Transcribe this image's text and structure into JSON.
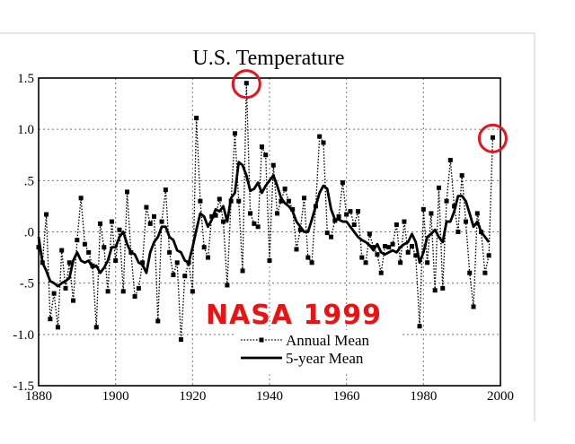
{
  "chart_data": {
    "type": "line",
    "title": "U.S. Temperature",
    "xlabel": "",
    "ylabel": "",
    "xlim": [
      1880,
      2000
    ],
    "ylim": [
      -1.5,
      1.5
    ],
    "x_ticks": [
      1880,
      1900,
      1920,
      1940,
      1960,
      1980,
      2000
    ],
    "y_ticks": [
      {
        "value": 1.5,
        "label": "1.5"
      },
      {
        "value": 1.0,
        "label": "1.0"
      },
      {
        "value": 0.5,
        "label": ".5"
      },
      {
        "value": 0.0,
        "label": ".0"
      },
      {
        "value": -0.5,
        "label": "-.5"
      },
      {
        "value": -1.0,
        "label": "-1.0"
      },
      {
        "value": -1.5,
        "label": "-1.5"
      }
    ],
    "grid": true,
    "legend_position": "bottom-right",
    "series": [
      {
        "name": "Annual Mean",
        "style": "dotted-with-square-markers",
        "x": [
          1880,
          1881,
          1882,
          1883,
          1884,
          1885,
          1886,
          1887,
          1888,
          1889,
          1890,
          1891,
          1892,
          1893,
          1894,
          1895,
          1896,
          1897,
          1898,
          1899,
          1900,
          1901,
          1902,
          1903,
          1904,
          1905,
          1906,
          1907,
          1908,
          1909,
          1910,
          1911,
          1912,
          1913,
          1914,
          1915,
          1916,
          1917,
          1918,
          1919,
          1920,
          1921,
          1922,
          1923,
          1924,
          1925,
          1926,
          1927,
          1928,
          1929,
          1930,
          1931,
          1932,
          1933,
          1934,
          1935,
          1936,
          1937,
          1938,
          1939,
          1940,
          1941,
          1942,
          1943,
          1944,
          1945,
          1946,
          1947,
          1948,
          1949,
          1950,
          1951,
          1952,
          1953,
          1954,
          1955,
          1956,
          1957,
          1958,
          1959,
          1960,
          1961,
          1962,
          1963,
          1964,
          1965,
          1966,
          1967,
          1968,
          1969,
          1970,
          1971,
          1972,
          1973,
          1974,
          1975,
          1976,
          1977,
          1978,
          1979,
          1980,
          1981,
          1982,
          1983,
          1984,
          1985,
          1986,
          1987,
          1988,
          1989,
          1990,
          1991,
          1992,
          1993,
          1994,
          1995,
          1996,
          1997,
          1998
        ],
        "values": [
          -0.15,
          -0.3,
          0.17,
          -0.85,
          -0.6,
          -0.93,
          -0.18,
          -0.55,
          -0.3,
          -0.67,
          -0.08,
          0.33,
          -0.12,
          -0.2,
          -0.33,
          -0.93,
          0.08,
          -0.15,
          -0.58,
          0.1,
          -0.28,
          0.02,
          -0.58,
          0.39,
          -0.2,
          -0.63,
          -0.55,
          -0.3,
          0.24,
          0.08,
          0.15,
          -0.87,
          0.1,
          0.41,
          -0.2,
          -0.42,
          -0.3,
          -1.05,
          -0.43,
          -0.3,
          -0.58,
          1.11,
          0.3,
          -0.15,
          -0.25,
          0.15,
          0.16,
          0.32,
          0.1,
          -0.52,
          0.3,
          0.96,
          0.3,
          -0.38,
          1.45,
          0.18,
          0.08,
          0.05,
          0.83,
          0.75,
          -0.28,
          0.65,
          0.18,
          0.3,
          0.42,
          0.3,
          0.22,
          -0.17,
          0.02,
          0.33,
          -0.25,
          -0.3,
          0.25,
          0.93,
          0.87,
          -0.01,
          -0.05,
          0.11,
          0.15,
          0.48,
          0.17,
          0.2,
          0.07,
          0.2,
          -0.25,
          -0.3,
          -0.02,
          -0.15,
          -0.22,
          -0.4,
          -0.14,
          -0.15,
          -0.12,
          0.07,
          -0.3,
          0.1,
          -0.2,
          -0.14,
          -0.23,
          -0.92,
          0.22,
          -0.3,
          0.18,
          -0.57,
          0.43,
          -0.55,
          0.3,
          0.7,
          0.25,
          0.0,
          0.55,
          0.1,
          -0.4,
          -0.73,
          0.18,
          0.0,
          -0.4,
          -0.23,
          0.92
        ]
      },
      {
        "name": "5-year Mean",
        "style": "thick-solid",
        "x": [
          1880,
          1881,
          1882,
          1883,
          1884,
          1885,
          1886,
          1887,
          1888,
          1889,
          1890,
          1891,
          1892,
          1893,
          1894,
          1895,
          1896,
          1897,
          1898,
          1899,
          1900,
          1901,
          1902,
          1903,
          1904,
          1905,
          1906,
          1907,
          1908,
          1909,
          1910,
          1911,
          1912,
          1913,
          1914,
          1915,
          1916,
          1917,
          1918,
          1919,
          1920,
          1921,
          1922,
          1923,
          1924,
          1925,
          1926,
          1927,
          1928,
          1929,
          1930,
          1931,
          1932,
          1933,
          1934,
          1935,
          1936,
          1937,
          1938,
          1939,
          1940,
          1941,
          1942,
          1943,
          1944,
          1945,
          1946,
          1947,
          1948,
          1949,
          1950,
          1951,
          1952,
          1953,
          1954,
          1955,
          1956,
          1957,
          1958,
          1959,
          1960,
          1961,
          1962,
          1963,
          1964,
          1965,
          1966,
          1967,
          1968,
          1969,
          1970,
          1971,
          1972,
          1973,
          1974,
          1975,
          1976,
          1977,
          1978,
          1979,
          1980,
          1981,
          1982,
          1983,
          1984,
          1985,
          1986,
          1987,
          1988,
          1989,
          1990,
          1991,
          1992,
          1993,
          1994,
          1995,
          1996,
          1997
        ],
        "values": [
          -0.05,
          -0.3,
          -0.38,
          -0.48,
          -0.5,
          -0.53,
          -0.5,
          -0.48,
          -0.45,
          -0.28,
          -0.2,
          -0.28,
          -0.3,
          -0.28,
          -0.35,
          -0.33,
          -0.4,
          -0.35,
          -0.28,
          -0.15,
          -0.15,
          -0.05,
          0.0,
          -0.12,
          -0.2,
          -0.22,
          -0.3,
          -0.32,
          -0.4,
          -0.2,
          -0.1,
          -0.05,
          0.05,
          0.05,
          -0.05,
          -0.08,
          -0.18,
          -0.2,
          -0.28,
          -0.3,
          -0.15,
          0.02,
          0.18,
          0.15,
          0.05,
          0.12,
          0.22,
          0.2,
          0.25,
          0.1,
          0.33,
          0.38,
          0.68,
          0.65,
          0.55,
          0.4,
          0.42,
          0.48,
          0.38,
          0.45,
          0.5,
          0.55,
          0.45,
          0.33,
          0.28,
          0.25,
          0.2,
          0.1,
          0.05,
          0.0,
          0.0,
          0.12,
          0.25,
          0.38,
          0.45,
          0.42,
          0.22,
          0.12,
          0.12,
          0.1,
          0.1,
          0.05,
          0.0,
          -0.05,
          -0.08,
          -0.1,
          -0.13,
          -0.18,
          -0.12,
          -0.2,
          -0.22,
          -0.2,
          -0.18,
          -0.2,
          -0.15,
          -0.12,
          -0.1,
          -0.02,
          -0.1,
          -0.3,
          -0.2,
          -0.05,
          -0.02,
          0.02,
          -0.05,
          -0.1,
          0.1,
          0.1,
          0.2,
          0.35,
          0.35,
          0.3,
          0.18,
          0.05,
          0.1,
          0.0,
          -0.05,
          -0.1
        ]
      }
    ],
    "annotations": {
      "stamp_text": "NASA 1999",
      "highlighted_points": [
        {
          "x": 1934,
          "y": 1.45
        },
        {
          "x": 1998,
          "y": 0.92
        }
      ],
      "highlight_color": "#e8141c",
      "stamp_color": "#ee1111"
    }
  }
}
